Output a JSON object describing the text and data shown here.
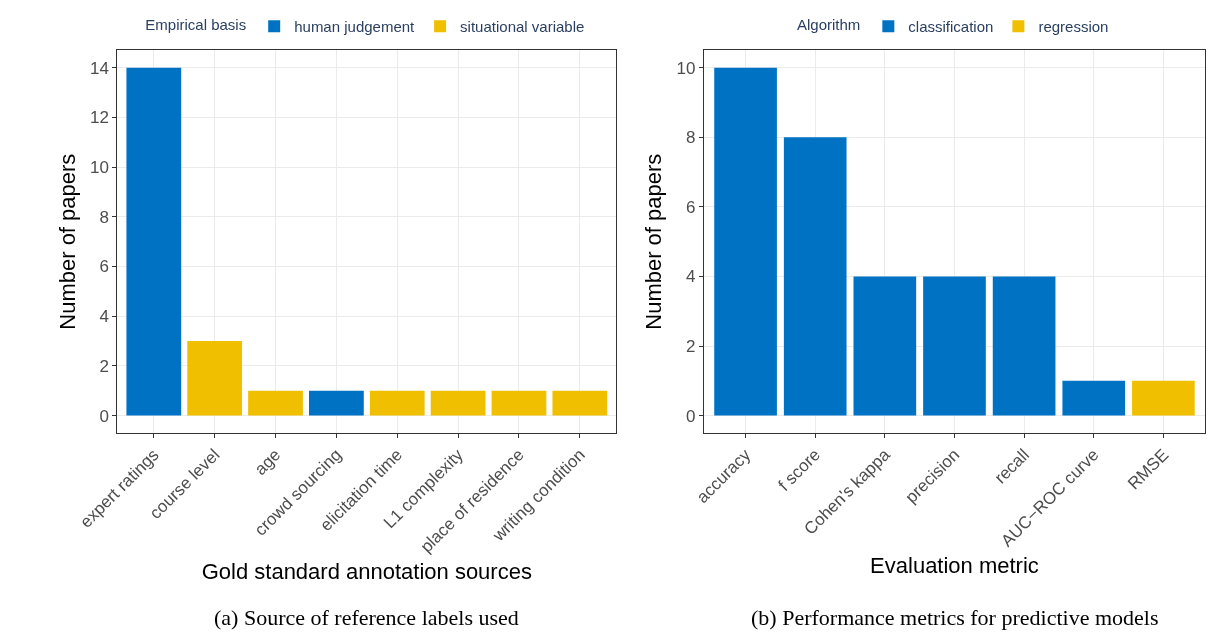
{
  "chart_data": [
    {
      "type": "bar",
      "xlabel": "Gold standard annotation sources",
      "ylabel": "Number of papers",
      "legend_title": "Empirical basis",
      "categories": [
        "expert ratings",
        "course level",
        "age",
        "crowd sourcing",
        "elicitation time",
        "L1 complexity",
        "place of residence",
        "writing condition"
      ],
      "series": [
        {
          "name": "human judgement",
          "color": "#0072c4",
          "values": [
            14,
            null,
            null,
            1,
            null,
            null,
            null,
            null
          ]
        },
        {
          "name": "situational variable",
          "color": "#f0c000",
          "values": [
            null,
            3,
            1,
            null,
            1,
            1,
            1,
            1
          ]
        }
      ],
      "ylim": [
        -0.7,
        14.7
      ],
      "yticks": [
        0,
        2,
        4,
        6,
        8,
        10,
        12,
        14
      ],
      "grid": true,
      "legend": "top",
      "annotations": [
        "(a) Source of reference labels used"
      ]
    },
    {
      "type": "bar",
      "xlabel": "Evaluation metric",
      "ylabel": "Number of papers",
      "legend_title": "Algorithm",
      "categories": [
        "accuracy",
        "f score",
        "Cohen's kappa",
        "precision",
        "recall",
        "AUC−ROC curve",
        "RMSE"
      ],
      "series": [
        {
          "name": "classification",
          "color": "#0072c4",
          "values": [
            10,
            8,
            4,
            4,
            4,
            1,
            null
          ]
        },
        {
          "name": "regression",
          "color": "#f0c000",
          "values": [
            null,
            null,
            null,
            null,
            null,
            null,
            1
          ]
        }
      ],
      "ylim": [
        -0.5,
        10.5
      ],
      "yticks": [
        0,
        2,
        4,
        6,
        8,
        10
      ],
      "grid": true,
      "legend": "top",
      "annotations": [
        "(b) Performance metrics for predictive models"
      ]
    }
  ]
}
